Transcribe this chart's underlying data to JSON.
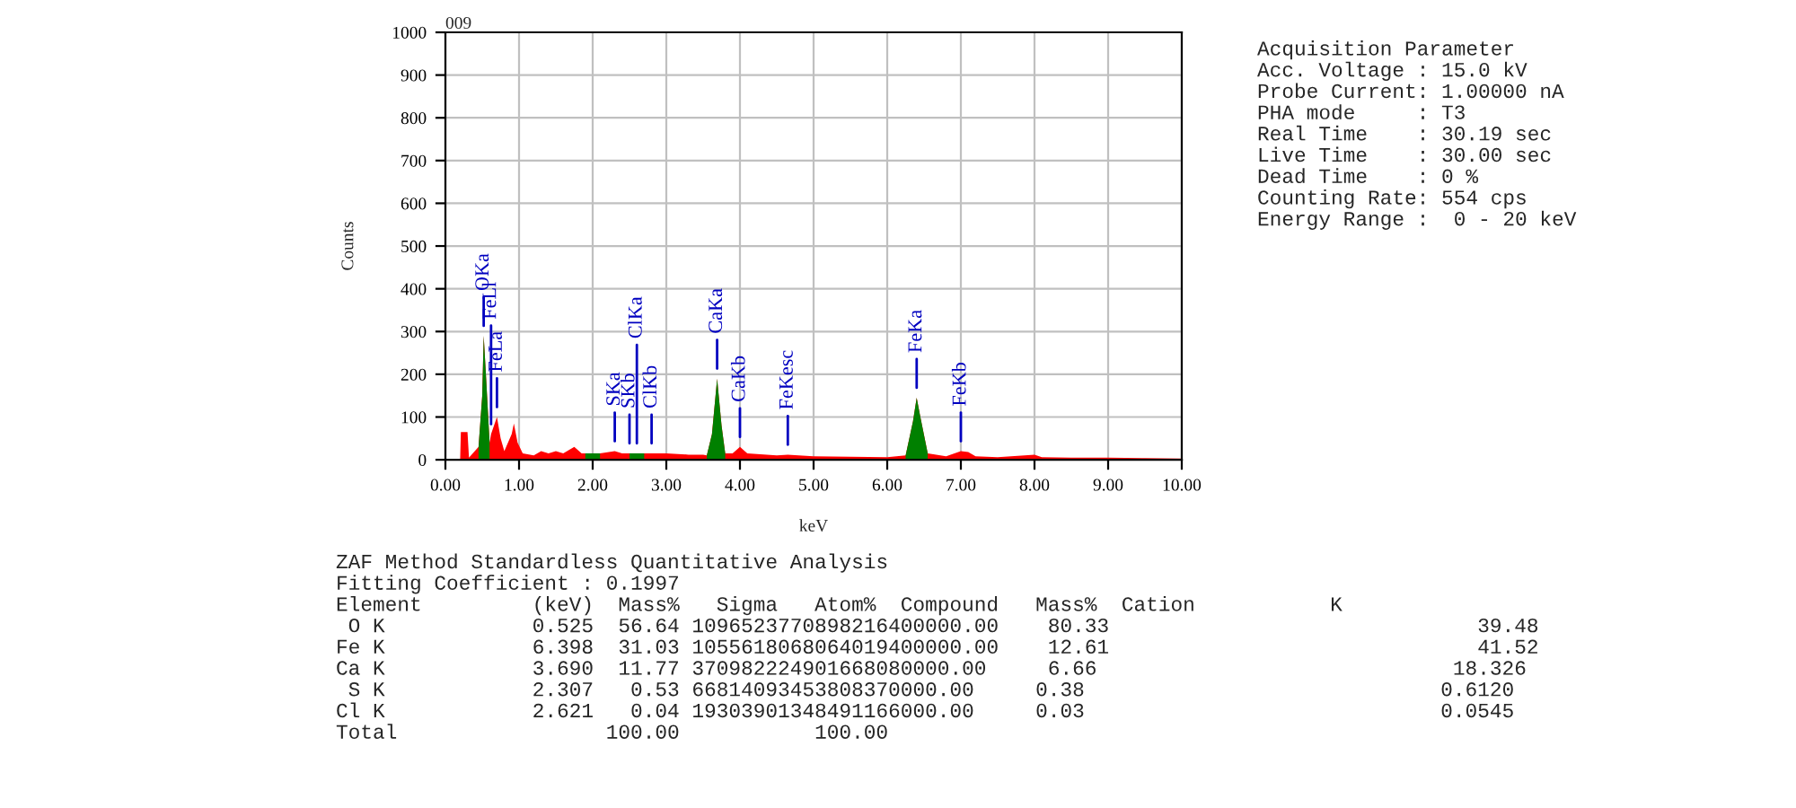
{
  "chart_data": {
    "type": "area",
    "xlabel": "keV",
    "ylabel": "Counts",
    "xlim": [
      0,
      10
    ],
    "ylim": [
      0,
      1000
    ],
    "xticks": [
      {
        "value": 0,
        "label": "0.00"
      },
      {
        "value": 1,
        "label": "1.00"
      },
      {
        "value": 2,
        "label": "2.00"
      },
      {
        "value": 3,
        "label": "3.00"
      },
      {
        "value": 4,
        "label": "4.00"
      },
      {
        "value": 5,
        "label": "5.00"
      },
      {
        "value": 6,
        "label": "6.00"
      },
      {
        "value": 7,
        "label": "7.00"
      },
      {
        "value": 8,
        "label": "8.00"
      },
      {
        "value": 9,
        "label": "9.00"
      },
      {
        "value": 10,
        "label": "10.00"
      }
    ],
    "yticks": [
      0,
      100,
      200,
      300,
      400,
      500,
      600,
      700,
      800,
      900,
      1000
    ],
    "grid": true,
    "series": [
      {
        "color": "#ff0000",
        "x": [
          0,
          0.2,
          0.21,
          0.3,
          0.32,
          0.45,
          0.5,
          0.52,
          0.55,
          0.6,
          0.62,
          0.7,
          0.75,
          0.8,
          0.9,
          0.93,
          0.98,
          1.05,
          1.2,
          1.3,
          1.4,
          1.5,
          1.6,
          1.75,
          1.85,
          1.9,
          2.0,
          2.1,
          2.3,
          2.4,
          2.5,
          2.6,
          2.7,
          2.8,
          3.0,
          3.3,
          3.5,
          3.55,
          3.62,
          3.69,
          3.75,
          3.8,
          3.9,
          4.0,
          4.1,
          4.5,
          4.65,
          5.0,
          5.5,
          6.0,
          6.25,
          6.35,
          6.4,
          6.45,
          6.55,
          6.8,
          7.0,
          7.1,
          7.2,
          7.5,
          8.0,
          8.1,
          8.5,
          9.0,
          9.5,
          10.0
        ],
        "values": [
          0,
          0,
          65,
          65,
          5,
          30,
          150,
          290,
          200,
          40,
          60,
          100,
          50,
          20,
          60,
          85,
          40,
          15,
          10,
          20,
          15,
          20,
          15,
          30,
          15,
          15,
          15,
          15,
          20,
          15,
          15,
          15,
          15,
          15,
          15,
          12,
          12,
          10,
          60,
          190,
          80,
          15,
          15,
          30,
          15,
          10,
          12,
          8,
          7,
          6,
          10,
          90,
          145,
          100,
          15,
          8,
          20,
          18,
          8,
          6,
          12,
          6,
          5,
          5,
          4,
          3
        ]
      },
      {
        "color": "#008000",
        "x": [
          0.45,
          0.5,
          0.52,
          0.55,
          0.6
        ],
        "values": [
          30,
          150,
          290,
          200,
          40
        ]
      },
      {
        "color": "#008000",
        "x": [
          1.9,
          2.0,
          2.1
        ],
        "values": [
          15,
          15,
          15
        ]
      },
      {
        "color": "#008000",
        "x": [
          2.5,
          2.6,
          2.7
        ],
        "values": [
          15,
          15,
          15
        ]
      },
      {
        "color": "#008000",
        "x": [
          3.55,
          3.62,
          3.69,
          3.75,
          3.8
        ],
        "values": [
          10,
          60,
          190,
          80,
          15
        ]
      },
      {
        "color": "#008000",
        "x": [
          6.25,
          6.35,
          6.4,
          6.45,
          6.55
        ],
        "values": [
          10,
          90,
          145,
          100,
          15
        ]
      }
    ],
    "annotations": [
      "009",
      "Acquisition Parameter\nAcc. Voltage : 15.0 kV\nProbe Current: 1.00000 nA\nPHA mode     : T3\nReal Time    : 30.19 sec\nLive Time    : 30.00 sec\nDead Time    : 0 %\nCounting Rate: 554 cps\nEnergy Range :  0 - 20 keV",
      "ZAF Method Standardless Quantitative Analysis\nFitting Coefficient : 0.1997\nElement         (keV)  Mass%   Sigma   Atom%  Compound   Mass%  Cation           K\n O K            0.525  56.64 1096523770898216400000.00    80.33                              39.48\nFe K            6.398  31.03 1055618068064019400000.00    12.61                              41.52\nCa K            3.690  11.77 370982224901668080000.00     6.66                             18.326\n S K            2.307   0.53 66814093453808370000.00     0.38                             0.6120\nCl K            2.621   0.04 19303901348491166000.00     0.03                             0.0545\nTotal                 100.00           100.00",
      {
        "text": "OKa",
        "x": 0.52,
        "y": 290
      },
      {
        "text": "FeLa",
        "x": 0.7,
        "y": 100
      },
      {
        "text": "FeLl",
        "x": 0.62,
        "y": 60
      },
      {
        "text": "SKa",
        "x": 2.3,
        "y": 20
      },
      {
        "text": "SKb",
        "x": 2.5,
        "y": 15
      },
      {
        "text": "ClKa",
        "x": 2.6,
        "y": 15
      },
      {
        "text": "ClKb",
        "x": 2.8,
        "y": 15
      },
      {
        "text": "CaKa",
        "x": 3.69,
        "y": 190
      },
      {
        "text": "CaKb",
        "x": 4.0,
        "y": 30
      },
      {
        "text": "FeKesc",
        "x": 4.65,
        "y": 12
      },
      {
        "text": "FeKa",
        "x": 6.4,
        "y": 145
      },
      {
        "text": "FeKb",
        "x": 7.0,
        "y": 20
      }
    ]
  }
}
